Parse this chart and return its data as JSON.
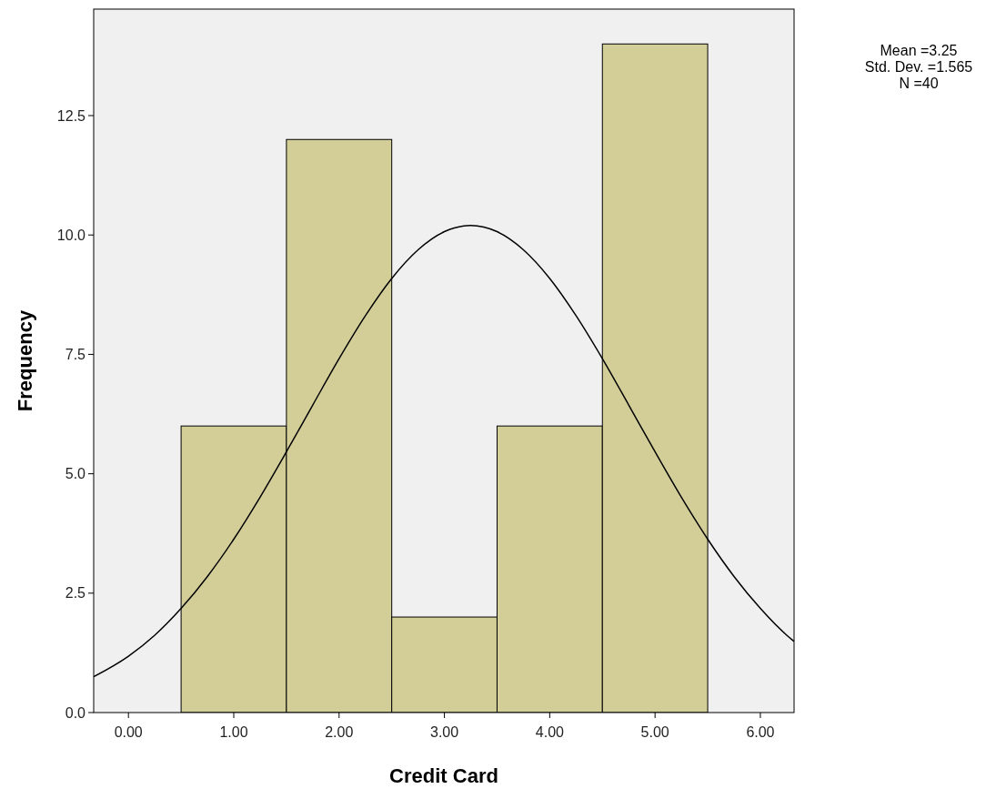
{
  "chart_data": {
    "type": "histogram",
    "xlabel": "Credit Card",
    "ylabel": "Frequency",
    "bins": [
      0.5,
      1.5,
      2.5,
      3.5,
      4.5,
      5.5
    ],
    "series": [
      {
        "color": "#d3ce97",
        "values": [
          6,
          12,
          2,
          6,
          14
        ]
      },
      {
        "type": "line",
        "color": "#000000",
        "x": [
          -0.33,
          0,
          0.25,
          0.5,
          0.75,
          1,
          1.25,
          1.5,
          1.75,
          2,
          2.25,
          2.5,
          2.75,
          3,
          3.25,
          3.5,
          3.75,
          4,
          4.25,
          4.5,
          4.75,
          5,
          5.25,
          5.5,
          5.75,
          6,
          6.25,
          6.32
        ],
        "values": [
          0.75,
          1.18,
          1.62,
          2.18,
          2.85,
          3.63,
          4.51,
          5.46,
          6.44,
          7.41,
          8.31,
          9.09,
          9.69,
          10.07,
          10.2,
          10.07,
          9.69,
          9.09,
          8.31,
          7.41,
          6.44,
          5.46,
          4.51,
          3.63,
          2.85,
          2.18,
          1.62,
          1.49
        ]
      }
    ],
    "xlim": [
      -0.33,
      6.32
    ],
    "ylim": [
      0,
      14.73
    ],
    "xticks": [
      {
        "value": 0,
        "label": "0.00"
      },
      {
        "value": 1,
        "label": "1.00"
      },
      {
        "value": 2,
        "label": "2.00"
      },
      {
        "value": 3,
        "label": "3.00"
      },
      {
        "value": 4,
        "label": "4.00"
      },
      {
        "value": 5,
        "label": "5.00"
      },
      {
        "value": 6,
        "label": "6.00"
      }
    ],
    "yticks": [
      {
        "value": 0,
        "label": "0.0"
      },
      {
        "value": 2.5,
        "label": "2.5"
      },
      {
        "value": 5,
        "label": "5.0"
      },
      {
        "value": 7.5,
        "label": "7.5"
      },
      {
        "value": 10,
        "label": "10.0"
      },
      {
        "value": 12.5,
        "label": "12.5"
      }
    ],
    "grid": false,
    "marker": "none",
    "line_style": "solid",
    "annotations": [
      "Mean =3.25",
      "Std. Dev. =1.565",
      "N =40"
    ]
  }
}
